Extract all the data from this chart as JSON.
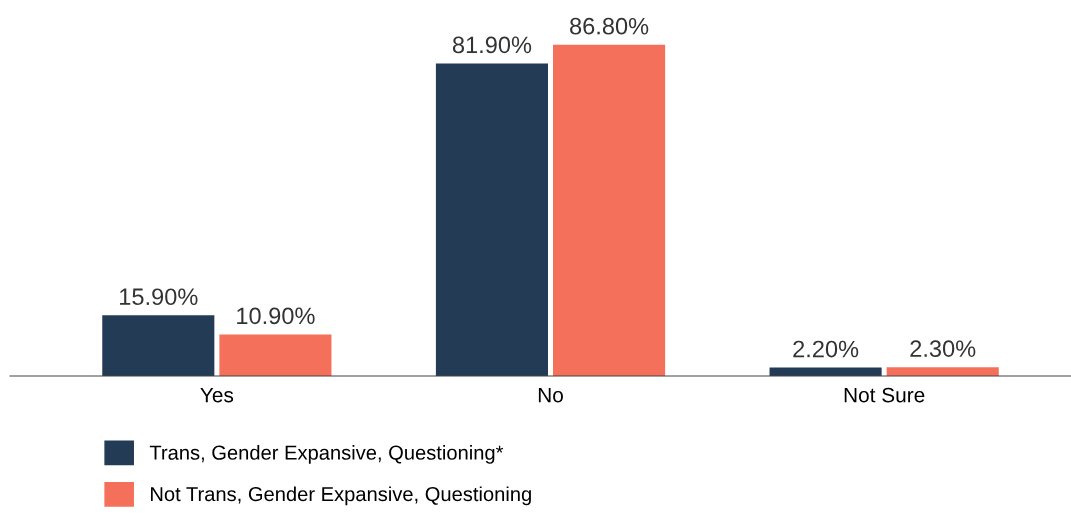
{
  "chart_data": {
    "type": "bar",
    "categories": [
      "Yes",
      "No",
      "Not Sure"
    ],
    "series": [
      {
        "name": "Trans, Gender Expansive, Questioning*",
        "color": "#243b55",
        "values": [
          15.9,
          81.9,
          2.2
        ],
        "value_labels": [
          "15.90%",
          "81.90%",
          "2.20%"
        ]
      },
      {
        "name": "Not Trans, Gender Expansive, Questioning",
        "color": "#f4705a",
        "values": [
          10.9,
          86.8,
          2.3
        ],
        "value_labels": [
          "10.90%",
          "86.80%",
          "2.30%"
        ]
      }
    ],
    "grid": false,
    "legend": "bottom"
  }
}
